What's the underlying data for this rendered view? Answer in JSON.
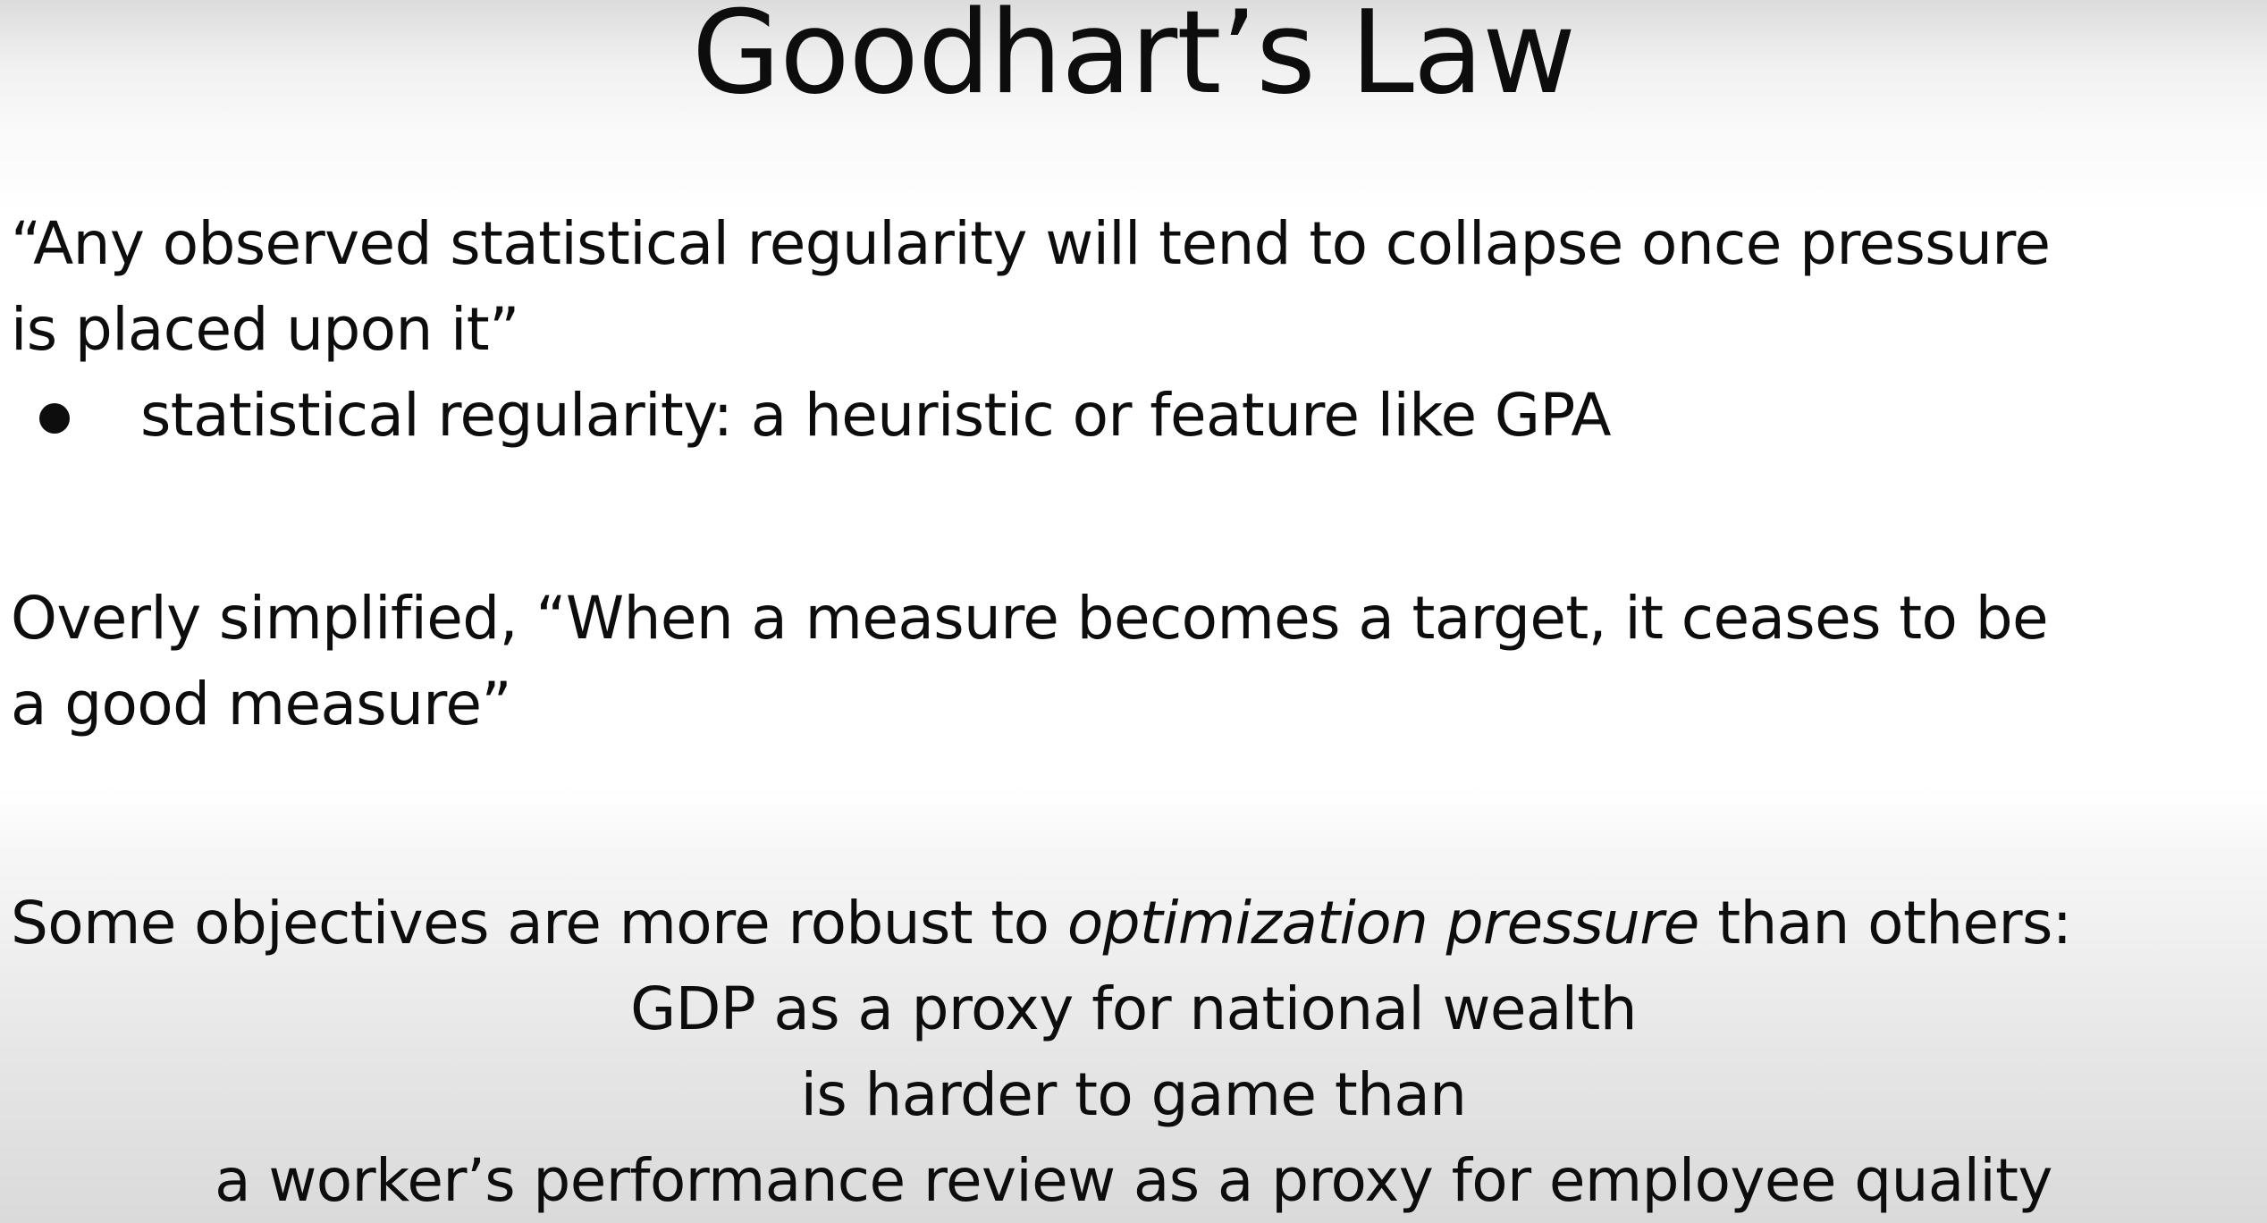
{
  "slide": {
    "title": "Goodhart’s Law",
    "quote": {
      "line1": "“Any observed statistical regularity will tend to collapse once pressure",
      "line2": "is placed upon it”"
    },
    "bullets": [
      "statistical regularity: a heuristic or feature like GPA"
    ],
    "simplified": {
      "line1": "Overly simplified, “When a measure becomes a target, it ceases to be",
      "line2": "a good measure”"
    },
    "robust": {
      "lead": "Some objectives are more robust to ",
      "emphasis": "optimization pressure",
      "tail": " than others:"
    },
    "example": {
      "line1": "GDP as a proxy for national wealth",
      "line2": "is harder to game than",
      "line3": "a worker’s performance review as a proxy for employee quality"
    }
  },
  "colors": {
    "text": "#0d0d0d",
    "background": "#ffffff",
    "vignette": "#dadada"
  }
}
